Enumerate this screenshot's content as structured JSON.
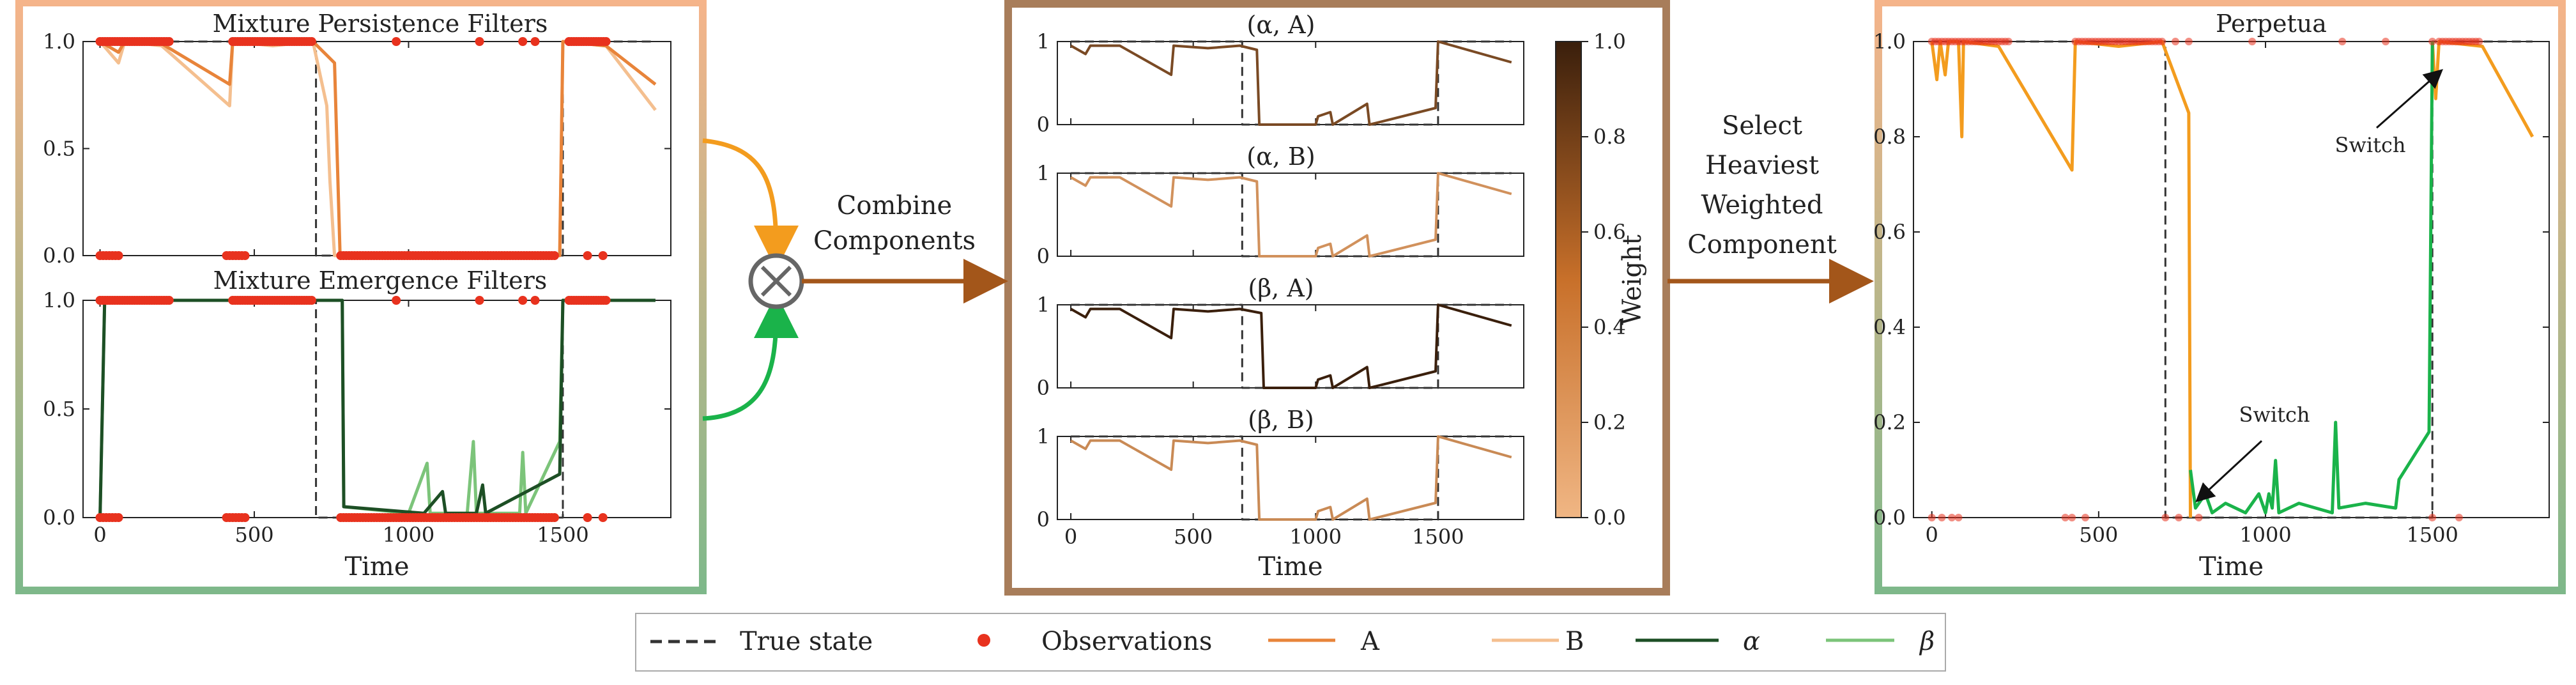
{
  "panels": {
    "persistence_title": "Mixture Persistence Filters",
    "emergence_title": "Mixture Emergence Filters",
    "combined_titles": [
      "(α, A)",
      "(α, B)",
      "(β, A)",
      "(β, B)"
    ],
    "perpetua_title": "Perpetua"
  },
  "flow": {
    "combine_label": [
      "Combine",
      "Components"
    ],
    "select_label": [
      "Select",
      "Heaviest",
      "Weighted",
      "Component"
    ],
    "switch_label": "Switch"
  },
  "axes": {
    "xlabel": "Time",
    "x_ticks": [
      "0",
      "500",
      "1000",
      "1500"
    ],
    "left_y_ticks": [
      "0.0",
      "0.5",
      "1.0"
    ],
    "mid_y_ticks": [
      "0",
      "1"
    ],
    "right_y_ticks": [
      "0.0",
      "0.2",
      "0.4",
      "0.6",
      "0.8",
      "1.0"
    ]
  },
  "colorbar": {
    "label": "Weight",
    "ticks": [
      "0.0",
      "0.2",
      "0.4",
      "0.6",
      "0.8",
      "1.0"
    ],
    "low_color": "#f0b684",
    "high_color": "#3a1f0c"
  },
  "legend": {
    "true_state": "True state",
    "observations": "Observations",
    "A": "A",
    "B": "B",
    "alpha": "α",
    "beta": "β"
  },
  "colors": {
    "A": "#e8843a",
    "B": "#f4bf8f",
    "alpha": "#1d4f25",
    "beta": "#7cc47a",
    "perpetua_orange": "#f39c1e",
    "perpetua_green": "#1ab34a",
    "obs": "#e8321e",
    "true_state": "#333333",
    "arrow_orange": "#f39c1e",
    "arrow_green": "#1ab34a",
    "arrow_brown": "#a3561a"
  },
  "chart_data": [
    {
      "type": "line",
      "title": "Mixture Persistence Filters",
      "xlabel": "",
      "ylim": [
        0,
        1
      ],
      "xlim": [
        0,
        1800
      ],
      "series": [
        {
          "name": "True state",
          "x": [
            0,
            700,
            700,
            1500,
            1500,
            1800
          ],
          "y": [
            1,
            1,
            0,
            0,
            1,
            1
          ]
        },
        {
          "name": "A",
          "x": [
            0,
            420,
            430,
            680,
            760,
            780,
            1490,
            1500,
            1800
          ],
          "y": [
            1,
            0.85,
            1,
            0.97,
            0.4,
            0,
            0,
            1,
            0.8
          ]
        },
        {
          "name": "B",
          "x": [
            0,
            420,
            430,
            680,
            740,
            770,
            1490,
            1500,
            1800
          ],
          "y": [
            1,
            0.6,
            1,
            0.95,
            0.3,
            0,
            0,
            1,
            0.7
          ]
        }
      ]
    },
    {
      "type": "line",
      "title": "Mixture Emergence Filters",
      "xlabel": "Time",
      "ylim": [
        0,
        1
      ],
      "xlim": [
        0,
        1800
      ],
      "series": [
        {
          "name": "True state",
          "x": [
            0,
            700,
            700,
            1500,
            1500,
            1800
          ],
          "y": [
            1,
            1,
            0,
            0,
            1,
            1
          ]
        },
        {
          "name": "α",
          "x": [
            0,
            20,
            780,
            790,
            1500,
            1510,
            1800
          ],
          "y": [
            0,
            1,
            1,
            0,
            0.2,
            1,
            1
          ]
        },
        {
          "name": "β",
          "x": [
            0,
            20,
            780,
            790,
            1200,
            1210,
            1490,
            1500,
            1800
          ],
          "y": [
            0,
            1,
            1,
            0,
            0.3,
            0,
            0.3,
            1,
            1
          ]
        }
      ]
    },
    {
      "type": "line",
      "title": "Perpetua",
      "xlabel": "Time",
      "ylim": [
        0,
        1
      ],
      "xlim": [
        0,
        1800
      ],
      "series": [
        {
          "name": "True state",
          "x": [
            0,
            700,
            700,
            1500,
            1500,
            1800
          ],
          "y": [
            1,
            1,
            0,
            0,
            1,
            1
          ]
        },
        {
          "name": "orange",
          "x": [
            0,
            420,
            430,
            680,
            760,
            770
          ],
          "y": [
            1,
            0.73,
            1,
            1,
            0.85,
            0
          ]
        },
        {
          "name": "green",
          "x": [
            770,
            1200,
            1210,
            1400,
            1490,
            1500
          ],
          "y": [
            0.02,
            0.02,
            0.2,
            0.02,
            0.18,
            1
          ]
        }
      ]
    }
  ]
}
